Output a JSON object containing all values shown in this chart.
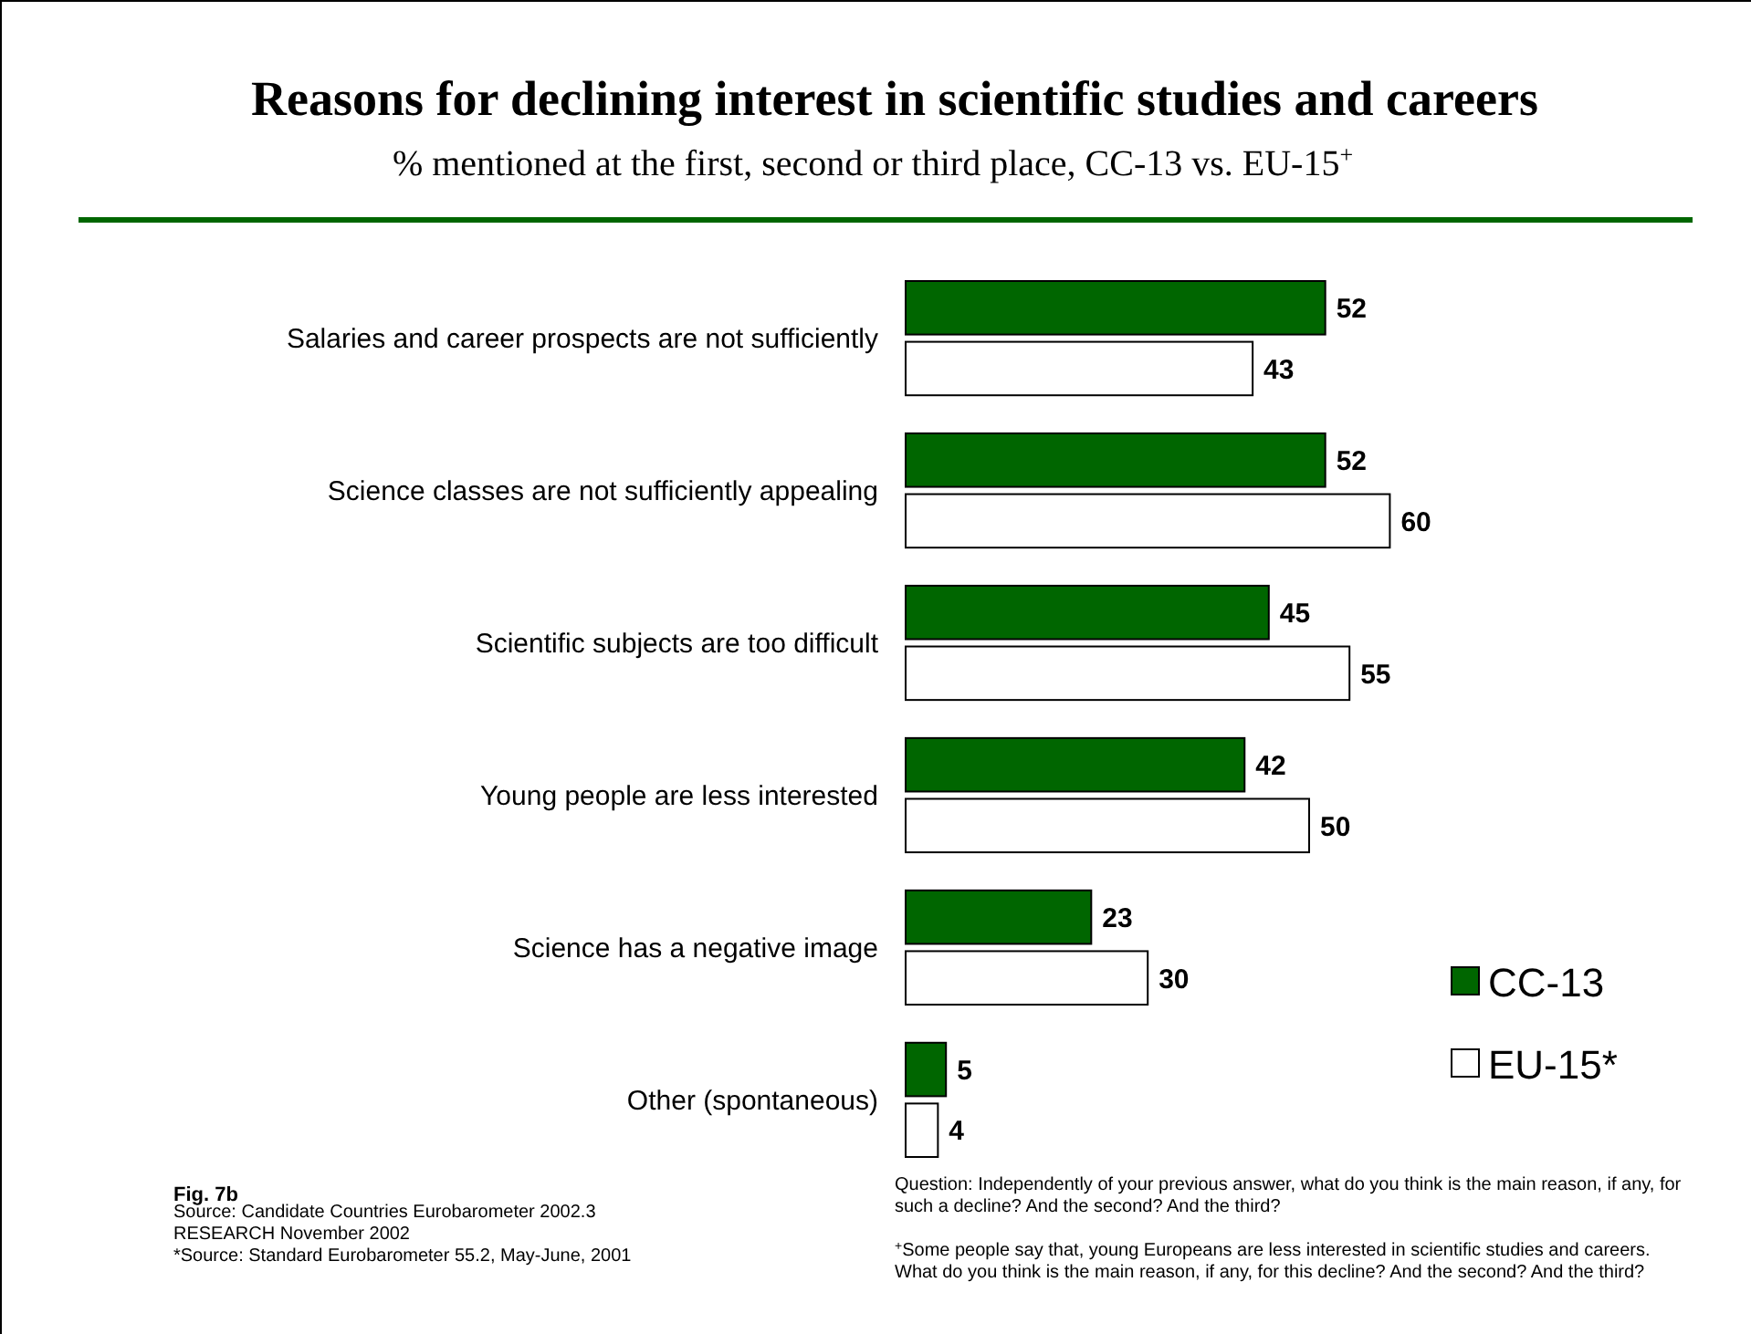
{
  "chart_data": {
    "type": "bar",
    "orientation": "horizontal",
    "title": "Reasons for declining interest in scientific studies and careers",
    "subtitle": "% mentioned at the first, second or third place, CC-13 vs. EU-15$^{+}$",
    "categories": [
      "Salaries and career prospects are not sufficiently",
      "Science classes are not sufficiently appealing",
      "Scientific subjects are too difficult",
      "Young people are less interested",
      "Science has a negative image",
      "Other (spontaneous)"
    ],
    "series": [
      {
        "name": "CC-13",
        "color": "#006600",
        "values": [
          52,
          52,
          45,
          42,
          23,
          5
        ]
      },
      {
        "name": "EU-15*",
        "color": "#ffffff",
        "values": [
          43,
          60,
          55,
          50,
          30,
          4
        ]
      }
    ],
    "tick_labels": "y",
    "data_labels": true,
    "legend": "bottom right",
    "annotations": [
      "Fig. 7b",
      "Source: Candidate Countries Eurobarometer 2002.3 RESEARCH November  2002",
      "*Source: Standard Eurobarometer 55.2, May-June, 2001",
      "Question:  Independently of your previous answer, what do you think is the main reason, if any, for such a decline? And the second? And the third?",
      "$^{+}$Some people say that, young Europeans are less interested in scientific studies and careers. What do you think is the main reason, if any, for this decline? And the second? And the third?"
    ]
  }
}
